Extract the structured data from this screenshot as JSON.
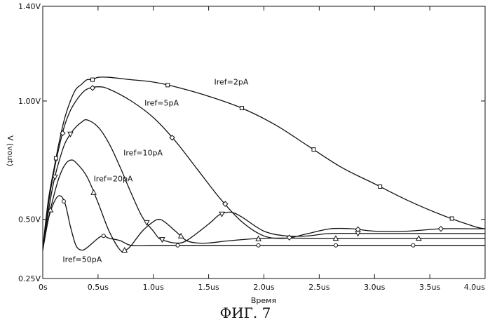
{
  "chart_data": {
    "type": "line",
    "title": "",
    "xlabel": "Время",
    "ylabel": "V (vout)",
    "xlim": [
      0,
      4.0
    ],
    "ylim": [
      0.25,
      1.4
    ],
    "x_ticks": [
      {
        "v": 0,
        "label": "0s"
      },
      {
        "v": 0.5,
        "label": "0.5us"
      },
      {
        "v": 1.0,
        "label": "1.0us"
      },
      {
        "v": 1.5,
        "label": "1.5us"
      },
      {
        "v": 2.0,
        "label": "2.0us"
      },
      {
        "v": 2.5,
        "label": "2.5us"
      },
      {
        "v": 3.0,
        "label": "3.0us"
      },
      {
        "v": 3.5,
        "label": "3.5us"
      },
      {
        "v": 4.0,
        "label": "4.0us"
      }
    ],
    "y_ticks": [
      {
        "v": 0.25,
        "label": "0.25V"
      },
      {
        "v": 0.5,
        "label": "0.50V"
      },
      {
        "v": 1.0,
        "label": "1.00V"
      },
      {
        "v": 1.4,
        "label": "1.40V"
      }
    ],
    "series": [
      {
        "name": "Iref=2pA",
        "marker": "square",
        "x": [
          0,
          0.05,
          0.1,
          0.15,
          0.2,
          0.25,
          0.3,
          0.35,
          0.4,
          0.45,
          0.5,
          0.6,
          0.8,
          1.0,
          1.2,
          1.5,
          1.8,
          2.1,
          2.4,
          2.7,
          3.0,
          3.3,
          3.6,
          3.9,
          4.0
        ],
        "y": [
          0.38,
          0.58,
          0.71,
          0.83,
          0.93,
          1.0,
          1.05,
          1.07,
          1.09,
          1.09,
          1.1,
          1.1,
          1.09,
          1.08,
          1.06,
          1.02,
          0.97,
          0.9,
          0.81,
          0.72,
          0.65,
          0.58,
          0.52,
          0.47,
          0.46
        ],
        "markers_x": [
          0.12,
          0.45,
          1.13,
          1.8,
          2.45,
          3.05,
          3.7
        ]
      },
      {
        "name": "Iref=5pA",
        "marker": "diamond",
        "x": [
          0,
          0.05,
          0.1,
          0.15,
          0.2,
          0.25,
          0.3,
          0.35,
          0.4,
          0.5,
          0.6,
          0.8,
          1.0,
          1.2,
          1.4,
          1.6,
          1.8,
          2.0,
          2.2,
          2.4,
          2.6,
          2.8,
          3.0,
          3.3,
          3.6,
          3.9,
          4.0
        ],
        "y": [
          0.37,
          0.56,
          0.7,
          0.81,
          0.9,
          0.96,
          1.0,
          1.03,
          1.05,
          1.06,
          1.05,
          1.0,
          0.93,
          0.83,
          0.71,
          0.59,
          0.49,
          0.43,
          0.42,
          0.44,
          0.46,
          0.46,
          0.45,
          0.45,
          0.46,
          0.46,
          0.46
        ],
        "markers_x": [
          0.18,
          0.45,
          1.17,
          1.65,
          2.23,
          2.85,
          3.6
        ]
      },
      {
        "name": "Iref=10pA",
        "marker": "triangle-down",
        "x": [
          0,
          0.05,
          0.1,
          0.15,
          0.2,
          0.25,
          0.3,
          0.35,
          0.4,
          0.5,
          0.6,
          0.7,
          0.8,
          0.9,
          1.0,
          1.05,
          1.1,
          1.2,
          1.3,
          1.5,
          1.6,
          1.7,
          1.8,
          2.0,
          2.2,
          2.4,
          2.6,
          3.0,
          3.5,
          4.0
        ],
        "y": [
          0.37,
          0.53,
          0.66,
          0.75,
          0.82,
          0.86,
          0.89,
          0.91,
          0.92,
          0.89,
          0.82,
          0.72,
          0.61,
          0.51,
          0.45,
          0.42,
          0.41,
          0.4,
          0.41,
          0.48,
          0.52,
          0.53,
          0.51,
          0.45,
          0.43,
          0.43,
          0.44,
          0.44,
          0.44,
          0.44
        ],
        "markers_x": [
          0.11,
          0.25,
          0.94,
          1.08,
          1.62,
          2.85
        ]
      },
      {
        "name": "Iref=20pA",
        "marker": "triangle-up",
        "x": [
          0,
          0.05,
          0.1,
          0.15,
          0.2,
          0.25,
          0.3,
          0.4,
          0.5,
          0.6,
          0.7,
          0.75,
          0.8,
          0.9,
          1.0,
          1.05,
          1.1,
          1.2,
          1.3,
          1.4,
          1.5,
          1.7,
          2.0,
          2.5,
          3.0,
          3.5,
          4.0
        ],
        "y": [
          0.37,
          0.5,
          0.6,
          0.68,
          0.73,
          0.75,
          0.74,
          0.68,
          0.57,
          0.45,
          0.37,
          0.37,
          0.39,
          0.45,
          0.49,
          0.5,
          0.49,
          0.45,
          0.41,
          0.4,
          0.4,
          0.41,
          0.42,
          0.42,
          0.42,
          0.42,
          0.42
        ],
        "markers_x": [
          0.07,
          0.46,
          0.74,
          1.25,
          1.95,
          2.65,
          3.4
        ]
      },
      {
        "name": "Iref=50pA",
        "marker": "circle",
        "x": [
          0,
          0.05,
          0.1,
          0.15,
          0.2,
          0.25,
          0.3,
          0.35,
          0.4,
          0.5,
          0.55,
          0.6,
          0.7,
          0.8,
          1.0,
          1.5,
          2.0,
          3.0,
          4.0
        ],
        "y": [
          0.38,
          0.5,
          0.57,
          0.6,
          0.57,
          0.47,
          0.39,
          0.37,
          0.38,
          0.42,
          0.43,
          0.42,
          0.41,
          0.39,
          0.39,
          0.39,
          0.39,
          0.39,
          0.39
        ],
        "markers_x": [
          0.19,
          0.55,
          1.22,
          1.95,
          2.65,
          3.35
        ]
      }
    ],
    "annotations": [
      {
        "text": "Iref=2pA",
        "series": "Iref=2pA"
      },
      {
        "text": "Iref=5pA",
        "series": "Iref=5pA"
      },
      {
        "text": "Iref=10pA",
        "series": "Iref=10pA"
      },
      {
        "text": "Iref=20pA",
        "series": "Iref=20pA"
      },
      {
        "text": "Iref=50pA",
        "series": "Iref=50pA"
      }
    ],
    "caption": "ФИГ. 7",
    "grid": false
  }
}
